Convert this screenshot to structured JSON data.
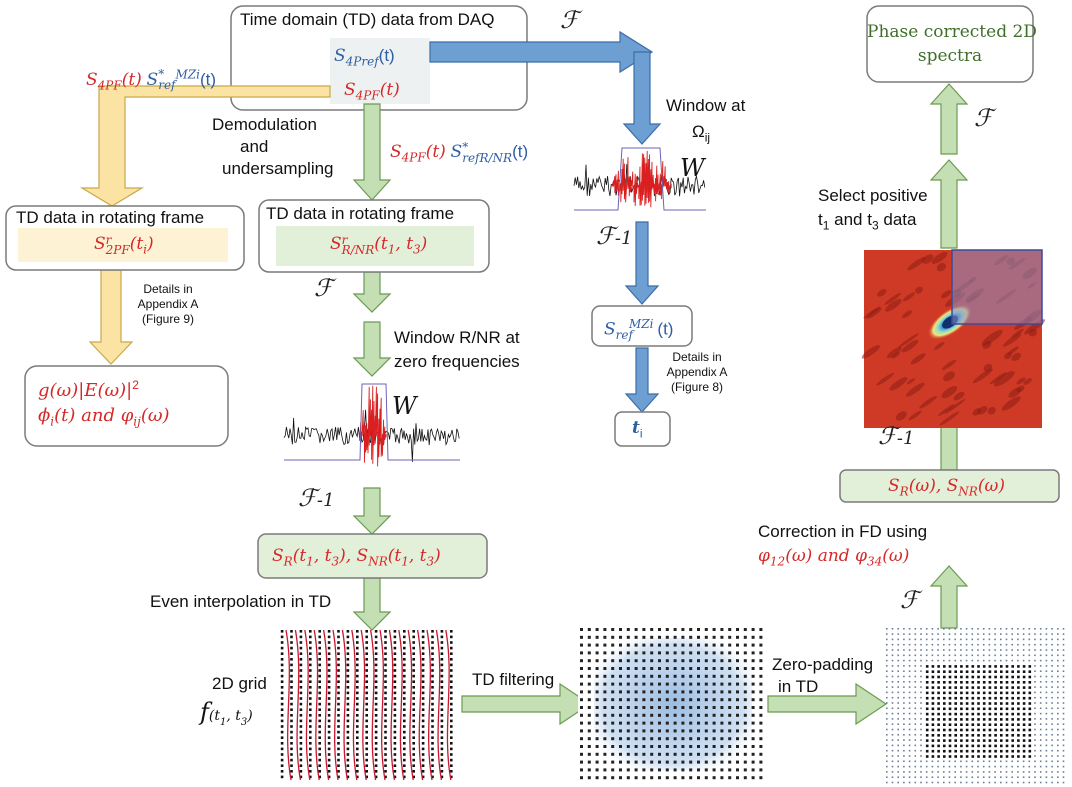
{
  "daq_box": {
    "title": "Time domain (TD) data from DAQ",
    "s4pref": "S",
    "s4pref_sub": "4Pref",
    "s4pref_arg": "(t)",
    "s4pf": "S",
    "s4pf_sub": "4PF",
    "s4pf_arg": "(t)"
  },
  "left_branch": {
    "product_a": "S",
    "product_a_sub": "4PF",
    "product_a_arg": "(t)",
    "product_b": "S",
    "product_b_sup": "*",
    "product_b_sub": "ref",
    "product_b_sup2": "MZi",
    "product_b_arg": "(t)",
    "box_title": "TD data in rotating frame",
    "box_formula": "S",
    "box_formula_sup": "r",
    "box_formula_sub": "2PF",
    "box_formula_arg": "(t",
    "box_formula_arg_sub": "i",
    "box_formula_arg_end": ")",
    "details": [
      "Details in",
      "Appendix A",
      "(Figure 9)"
    ],
    "result_line1": "g(ω)|E(ω)|",
    "result_line1_sup": "2",
    "result_line2": "ϕ",
    "result_line2_sub": "i",
    "result_line2_mid": "(t) and φ",
    "result_line2_sub2": "ij",
    "result_line2_end": "(ω)"
  },
  "middle_branch": {
    "demod": [
      "Demodulation",
      "and",
      "undersampling"
    ],
    "product_a": "S",
    "product_a_sub": "4PF",
    "product_a_arg": "(t)",
    "product_b": "S",
    "product_b_sup": "*",
    "product_b_sub": "refR/NR",
    "product_b_arg": "(t)",
    "box_title": "TD data in rotating frame",
    "box_formula": "S",
    "box_formula_sup": "r",
    "box_formula_sub": "R/NR",
    "box_formula_arg": "(t",
    "box_formula_arg_sub1": "1",
    "box_formula_arg_mid": ", t",
    "box_formula_arg_sub2": "3",
    "box_formula_arg_end": ")",
    "window_label": [
      "Window R/NR at",
      "zero frequencies"
    ],
    "window_w": "W",
    "sr_box": "S",
    "sr_sub": "R",
    "sr_arg": "(t",
    "sr_arg_sub1": "1",
    "sr_arg_mid": ", t",
    "sr_arg_sub2": "3",
    "sr_arg_end": "), S",
    "snr_sub": "NR",
    "snr_arg": "(t",
    "snr_arg_sub1": "1",
    "snr_arg_mid": ", t",
    "snr_arg_sub2": "3",
    "snr_arg_end": ")",
    "even_interp": "Even interpolation in TD",
    "grid_label": "2D grid",
    "grid_f": "f",
    "grid_f_arg": "(t",
    "grid_f_sub1": "1",
    "grid_f_mid": ", t",
    "grid_f_sub2": "3",
    "grid_f_end": ")",
    "td_filter": "TD filtering"
  },
  "ref_branch": {
    "window_label": "Window at",
    "window_omega": "Ω",
    "window_omega_sub": "ij",
    "window_w": "W",
    "sref": "S",
    "sref_sub": "ref",
    "sref_sup": "MZi",
    "sref_arg": "(t)",
    "details": [
      "Details in",
      "Appendix A",
      "(Figure 8)"
    ],
    "ti": "t",
    "ti_sub": "i"
  },
  "right_branch": {
    "zero_pad": [
      "Zero-padding",
      "in TD"
    ],
    "correction_line1": "Correction in FD using",
    "correction_phi1": "φ",
    "correction_phi1_sub": "12",
    "correction_mid": "(ω) and φ",
    "correction_phi2_sub": "34",
    "correction_end": "(ω)",
    "sw_box": "S",
    "sw_sub": "R",
    "sw_mid": "(ω), S",
    "sw_sub2": "NR",
    "sw_end": "(ω)",
    "select": [
      "Select positive",
      "t",
      "1",
      " and t",
      "3",
      " data"
    ],
    "final_box": [
      "Phase corrected 2D",
      "spectra"
    ]
  },
  "fourier_symbol": "ℱ",
  "inverse_fourier_symbol": "ℱ",
  "inverse_suffix": "-1",
  "colors": {
    "red": "#d62828",
    "blue": "#2e5fa3",
    "green_fill": "#c5dfb4",
    "green_box": "#e2efd9",
    "yellow_fill": "#fbe3a3",
    "yellow_box": "#fdf2d3",
    "blue_arrow": "#6e9fd3",
    "spectrum_red": "#c0392b"
  }
}
